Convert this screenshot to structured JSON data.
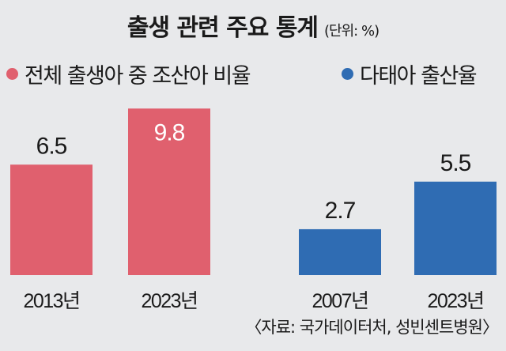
{
  "title": "출생 관련 주요 통계",
  "unit": "(단위: %)",
  "source": "〈자료: 국가데이터처, 성빈센트병원〉",
  "colors": {
    "red": "#e0606e",
    "blue": "#2f6cb3",
    "background": "#e8e9eb"
  },
  "chart_data": [
    {
      "type": "bar",
      "title": "전체 출생아 중 조산아 비율",
      "legend": "전체 출생아 중 조산아 비율",
      "categories": [
        "2013년",
        "2023년"
      ],
      "values": [
        6.5,
        9.8
      ],
      "value_labels": [
        "6.5",
        "9.8"
      ],
      "color": "#e0606e",
      "ylim": [
        0,
        9.8
      ]
    },
    {
      "type": "bar",
      "title": "다태아 출산율",
      "legend": "다태아 출산율",
      "categories": [
        "2007년",
        "2023년"
      ],
      "values": [
        2.7,
        5.5
      ],
      "value_labels": [
        "2.7",
        "5.5"
      ],
      "color": "#2f6cb3",
      "ylim": [
        0,
        9.8
      ]
    }
  ]
}
